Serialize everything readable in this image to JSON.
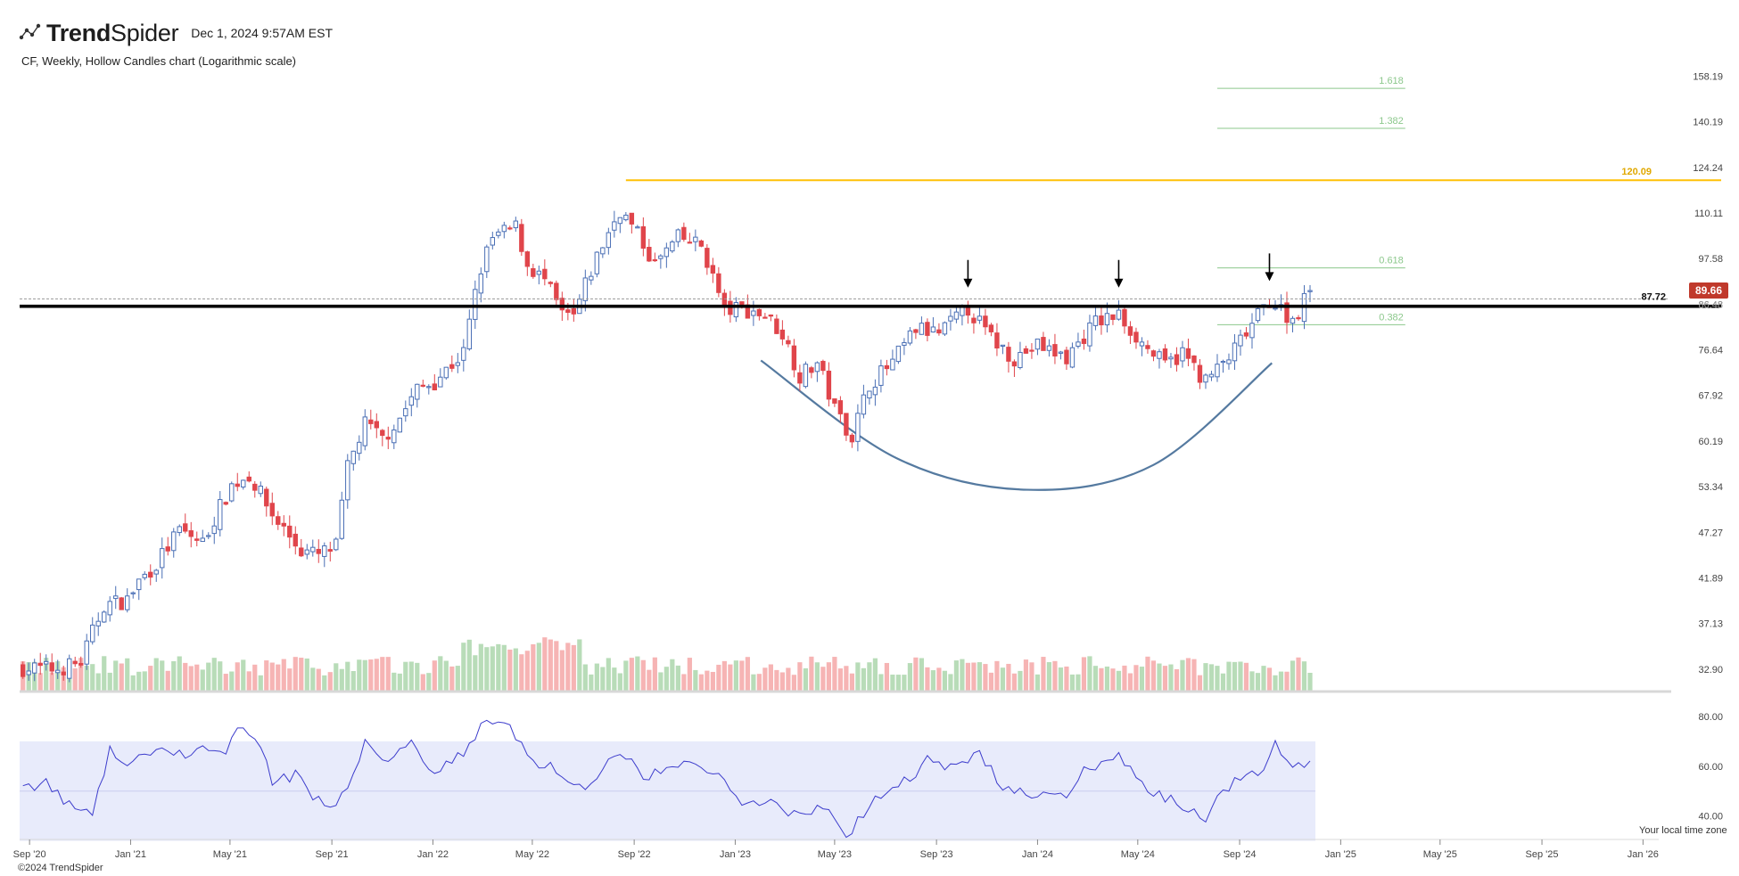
{
  "header": {
    "brand_prefix": "Trend",
    "brand_suffix": "Spider",
    "timestamp": "Dec 1, 2024 9:57AM EST",
    "subtitle": "CF, Weekly, Hollow Candles chart (Logarithmic scale)"
  },
  "footer": {
    "copyright": "©2024 TrendSpider",
    "timezone_note": "Your local time zone"
  },
  "colors": {
    "up": "#4a6fb5",
    "down": "#e0454b",
    "vol_up": "#b8dcb8",
    "vol_down": "#f6b4b4",
    "resistance": "#ffc107",
    "support": "#000000",
    "fib": "#8cc88c",
    "rsi_line": "#3c3ccc",
    "rsi_band": "#e8ebfb",
    "cup": "#557aa0",
    "last_price_badge": "#c0392b"
  },
  "chart_data": {
    "type": "candlestick",
    "symbol": "CF",
    "timeframe": "Weekly",
    "scale": "log",
    "ylim": [
      31,
      170
    ],
    "xlim": [
      "2020-08-20",
      "2026-01-20"
    ],
    "y_ticks": [
      "158.19",
      "140.19",
      "124.24",
      "110.11",
      "97.58",
      "86.48",
      "76.64",
      "67.92",
      "60.19",
      "53.34",
      "47.27",
      "41.89",
      "37.13",
      "32.90"
    ],
    "x_ticks": [
      {
        "label": "Sep '20",
        "date": "2020-09-01"
      },
      {
        "label": "Jan '21",
        "date": "2021-01-01"
      },
      {
        "label": "May '21",
        "date": "2021-05-01"
      },
      {
        "label": "Sep '21",
        "date": "2021-09-01"
      },
      {
        "label": "Jan '22",
        "date": "2022-01-01"
      },
      {
        "label": "May '22",
        "date": "2022-05-01"
      },
      {
        "label": "Sep '22",
        "date": "2022-09-01"
      },
      {
        "label": "Jan '23",
        "date": "2023-01-01"
      },
      {
        "label": "May '23",
        "date": "2023-05-01"
      },
      {
        "label": "Sep '23",
        "date": "2023-09-01"
      },
      {
        "label": "Jan '24",
        "date": "2024-01-01"
      },
      {
        "label": "May '24",
        "date": "2024-05-01"
      },
      {
        "label": "Sep '24",
        "date": "2024-09-01"
      },
      {
        "label": "Jan '25",
        "date": "2025-01-01"
      },
      {
        "label": "May '25",
        "date": "2025-05-01"
      },
      {
        "label": "Sep '25",
        "date": "2025-09-01"
      },
      {
        "label": "Jan '26",
        "date": "2026-01-01"
      }
    ],
    "weekly_close_path": [
      [
        "2020-08-24",
        33.0
      ],
      [
        "2020-10-05",
        32.9
      ],
      [
        "2020-11-02",
        33.5
      ],
      [
        "2020-11-30",
        39.0
      ],
      [
        "2020-12-28",
        39.5
      ],
      [
        "2021-01-11",
        41.5
      ],
      [
        "2021-02-01",
        43.5
      ],
      [
        "2021-03-01",
        47.5
      ],
      [
        "2021-03-29",
        46.0
      ],
      [
        "2021-05-03",
        53.5
      ],
      [
        "2021-05-24",
        55.0
      ],
      [
        "2021-06-21",
        49.5
      ],
      [
        "2021-07-26",
        45.0
      ],
      [
        "2021-08-16",
        44.5
      ],
      [
        "2021-09-06",
        45.5
      ],
      [
        "2021-09-20",
        56.0
      ],
      [
        "2021-10-11",
        63.0
      ],
      [
        "2021-11-01",
        60.5
      ],
      [
        "2021-11-22",
        64.0
      ],
      [
        "2021-12-13",
        69.0
      ],
      [
        "2022-01-03",
        70.5
      ],
      [
        "2022-02-07",
        76.0
      ],
      [
        "2022-02-28",
        95.0
      ],
      [
        "2022-03-14",
        103.0
      ],
      [
        "2022-04-11",
        106.0
      ],
      [
        "2022-04-25",
        96.0
      ],
      [
        "2022-05-16",
        92.0
      ],
      [
        "2022-06-06",
        84.0
      ],
      [
        "2022-06-20",
        83.5
      ],
      [
        "2022-07-18",
        98.0
      ],
      [
        "2022-08-15",
        111.0
      ],
      [
        "2022-09-05",
        104.0
      ],
      [
        "2022-09-26",
        96.0
      ],
      [
        "2022-10-24",
        103.0
      ],
      [
        "2022-11-21",
        101.0
      ],
      [
        "2022-12-19",
        85.0
      ],
      [
        "2023-01-09",
        85.5
      ],
      [
        "2023-02-06",
        84.0
      ],
      [
        "2023-02-27",
        80.0
      ],
      [
        "2023-03-20",
        71.5
      ],
      [
        "2023-04-10",
        74.0
      ],
      [
        "2023-05-01",
        65.5
      ],
      [
        "2023-05-22",
        61.0
      ],
      [
        "2023-06-12",
        70.0
      ],
      [
        "2023-07-10",
        74.0
      ],
      [
        "2023-08-07",
        81.0
      ],
      [
        "2023-09-04",
        80.0
      ],
      [
        "2023-10-09",
        85.5
      ],
      [
        "2023-11-06",
        79.0
      ],
      [
        "2023-12-04",
        75.0
      ],
      [
        "2024-01-01",
        77.5
      ],
      [
        "2024-02-05",
        75.0
      ],
      [
        "2024-03-11",
        82.5
      ],
      [
        "2024-04-08",
        84.0
      ],
      [
        "2024-05-06",
        78.0
      ],
      [
        "2024-06-03",
        73.5
      ],
      [
        "2024-06-24",
        76.0
      ],
      [
        "2024-07-22",
        70.5
      ],
      [
        "2024-08-19",
        75.0
      ],
      [
        "2024-09-09",
        80.0
      ],
      [
        "2024-10-07",
        87.5
      ],
      [
        "2024-11-04",
        83.0
      ],
      [
        "2024-11-25",
        89.66
      ]
    ],
    "volume_scale_max": 105,
    "rsi": {
      "ylim": [
        32,
        85
      ],
      "overbought": 70,
      "oversold": 30,
      "midline": 50,
      "y_ticks": [
        "80.00",
        "60.00",
        "40.00"
      ],
      "path": [
        [
          "2020-08-24",
          52
        ],
        [
          "2020-09-21",
          53
        ],
        [
          "2020-10-19",
          44
        ],
        [
          "2020-11-16",
          41
        ],
        [
          "2020-12-07",
          66
        ],
        [
          "2021-01-04",
          60
        ],
        [
          "2021-02-01",
          69
        ],
        [
          "2021-03-01",
          64
        ],
        [
          "2021-03-29",
          68
        ],
        [
          "2021-04-19",
          64
        ],
        [
          "2021-05-10",
          74
        ],
        [
          "2021-06-07",
          70
        ],
        [
          "2021-06-21",
          52
        ],
        [
          "2021-07-19",
          57
        ],
        [
          "2021-08-09",
          48
        ],
        [
          "2021-08-30",
          45
        ],
        [
          "2021-09-20",
          50
        ],
        [
          "2021-10-11",
          70
        ],
        [
          "2021-11-08",
          63
        ],
        [
          "2021-12-06",
          70
        ],
        [
          "2022-01-03",
          58
        ],
        [
          "2022-02-07",
          65
        ],
        [
          "2022-03-07",
          79
        ],
        [
          "2022-04-04",
          76
        ],
        [
          "2022-05-02",
          62
        ],
        [
          "2022-06-06",
          58
        ],
        [
          "2022-07-04",
          50
        ],
        [
          "2022-08-15",
          66
        ],
        [
          "2022-09-19",
          55
        ],
        [
          "2022-10-24",
          62
        ],
        [
          "2022-12-05",
          58
        ],
        [
          "2023-01-09",
          44
        ],
        [
          "2023-02-13",
          46
        ],
        [
          "2023-03-13",
          40
        ],
        [
          "2023-04-17",
          44
        ],
        [
          "2023-05-15",
          32
        ],
        [
          "2023-06-12",
          45
        ],
        [
          "2023-07-17",
          52
        ],
        [
          "2023-08-21",
          62
        ],
        [
          "2023-09-25",
          60
        ],
        [
          "2023-10-23",
          65
        ],
        [
          "2023-11-20",
          52
        ],
        [
          "2023-12-25",
          48
        ],
        [
          "2024-01-29",
          47
        ],
        [
          "2024-03-04",
          60
        ],
        [
          "2024-04-08",
          64
        ],
        [
          "2024-05-13",
          50
        ],
        [
          "2024-06-17",
          45
        ],
        [
          "2024-07-22",
          40
        ],
        [
          "2024-08-26",
          55
        ],
        [
          "2024-09-23",
          57
        ],
        [
          "2024-10-14",
          68
        ],
        [
          "2024-11-04",
          60
        ],
        [
          "2024-11-25",
          63
        ]
      ]
    },
    "annotations": {
      "resistance": {
        "value": 120.09,
        "label": "120.09",
        "start": "2022-08-22"
      },
      "support": {
        "value": 86.0
      },
      "current_level": {
        "value": 87.72,
        "label": "87.72"
      },
      "last_price": {
        "value": 89.66,
        "label": "89.66"
      },
      "overlapped_axis_label": "86.48",
      "fib_levels": [
        {
          "label": "1.618",
          "value": 153.2
        },
        {
          "label": "1.382",
          "value": 137.8
        },
        {
          "label": "0.618",
          "value": 95.2
        },
        {
          "label": "0.382",
          "value": 81.9
        }
      ],
      "fib_range": [
        "2024-08-05",
        "2025-03-20"
      ],
      "arrows": [
        {
          "date": "2023-10-09",
          "value": 86.0
        },
        {
          "date": "2024-04-08",
          "value": 86.0
        },
        {
          "date": "2024-10-07",
          "value": 87.5
        }
      ],
      "cup_curve": [
        [
          "2023-02-01",
          74.5
        ],
        [
          "2023-07-15",
          57.5
        ],
        [
          "2023-12-20",
          52.9
        ],
        [
          "2024-05-20",
          56.5
        ],
        [
          "2024-10-10",
          74.0
        ]
      ]
    }
  }
}
